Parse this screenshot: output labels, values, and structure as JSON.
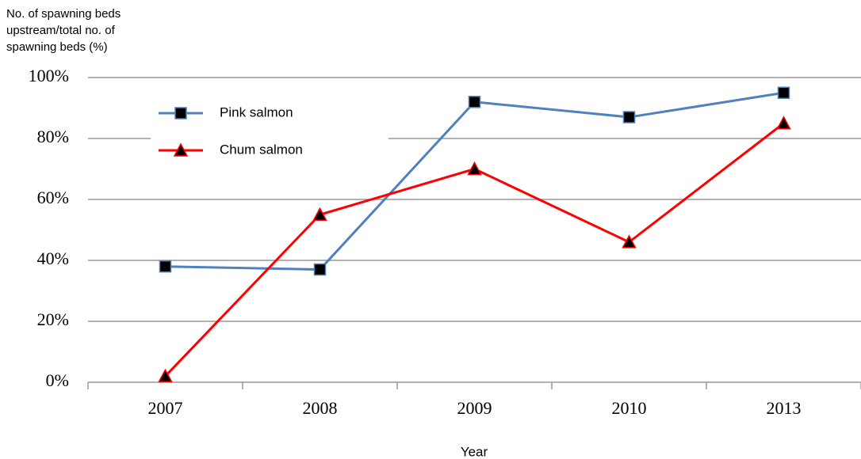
{
  "chart_data": {
    "type": "line",
    "y_axis_label": [
      "No. of spawning beds",
      "upstream/total no. of",
      "spawning beds (%)"
    ],
    "x_axis_label": "Year",
    "categories": [
      "2007",
      "2008",
      "2009",
      "2010",
      "2013"
    ],
    "series": [
      {
        "name": "Pink salmon",
        "color": "#4f81bd",
        "marker": "square",
        "values": [
          38,
          37,
          92,
          87,
          95
        ]
      },
      {
        "name": "Chum salmon",
        "color": "#ff0000",
        "marker": "triangle",
        "values": [
          2,
          55,
          70,
          46,
          85
        ]
      }
    ],
    "ylim": [
      0,
      100
    ],
    "yticks": [
      {
        "value": 0,
        "label": "0%"
      },
      {
        "value": 20,
        "label": "20%"
      },
      {
        "value": 40,
        "label": "40%"
      },
      {
        "value": 60,
        "label": "60%"
      },
      {
        "value": 80,
        "label": "80%"
      },
      {
        "value": 100,
        "label": "100%"
      }
    ],
    "grid": true,
    "legend": "upper-left"
  }
}
